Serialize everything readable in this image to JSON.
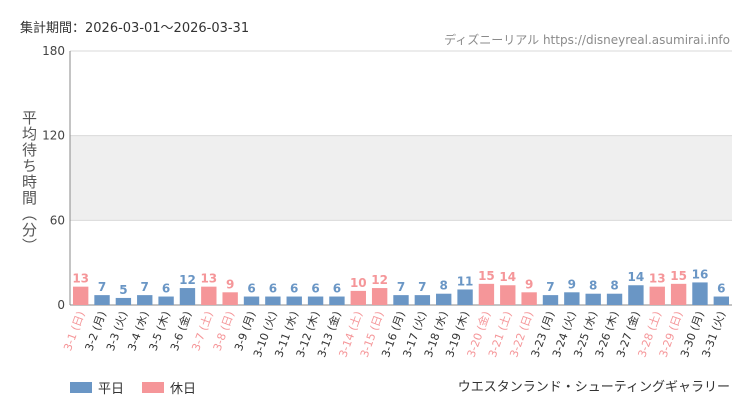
{
  "header": {
    "period": "集計期間：2026-03-01～2026-03-31",
    "source": "ディズニーリアル https://disneyreal.asumirai.info"
  },
  "footer": {
    "attraction": "ウエスタンランド・シューティングギャラリー"
  },
  "colors": {
    "weekday": "#6a96c5",
    "holiday": "#f59699",
    "band": "#efefef",
    "grid": "#d9d9d9",
    "axis": "#888888"
  },
  "chart_data": {
    "type": "bar",
    "ylabel": "平均待ち時間（分）",
    "ylim": [
      0,
      180
    ],
    "yticks": [
      "0",
      "60",
      "120",
      "180"
    ],
    "shaded_band": [
      60,
      120
    ],
    "legend_position": "bottom-left",
    "categories": [
      "3-1 (日)",
      "3-2 (月)",
      "3-3 (火)",
      "3-4 (水)",
      "3-5 (木)",
      "3-6 (金)",
      "3-7 (土)",
      "3-8 (日)",
      "3-9 (月)",
      "3-10 (火)",
      "3-11 (水)",
      "3-12 (木)",
      "3-13 (金)",
      "3-14 (土)",
      "3-15 (日)",
      "3-16 (月)",
      "3-17 (火)",
      "3-18 (水)",
      "3-19 (木)",
      "3-20 (金)",
      "3-21 (土)",
      "3-22 (日)",
      "3-23 (月)",
      "3-24 (火)",
      "3-25 (水)",
      "3-26 (木)",
      "3-27 (金)",
      "3-28 (土)",
      "3-29 (日)",
      "3-30 (月)",
      "3-31 (火)"
    ],
    "values": [
      13,
      7,
      5,
      7,
      6,
      12,
      13,
      9,
      6,
      6,
      6,
      6,
      6,
      10,
      12,
      7,
      7,
      8,
      11,
      15,
      14,
      9,
      7,
      9,
      8,
      8,
      14,
      13,
      15,
      16,
      6
    ],
    "day_type": [
      "休日",
      "平日",
      "平日",
      "平日",
      "平日",
      "平日",
      "休日",
      "休日",
      "平日",
      "平日",
      "平日",
      "平日",
      "平日",
      "休日",
      "休日",
      "平日",
      "平日",
      "平日",
      "平日",
      "休日",
      "休日",
      "休日",
      "平日",
      "平日",
      "平日",
      "平日",
      "平日",
      "休日",
      "休日",
      "平日",
      "平日"
    ],
    "legend": [
      "平日",
      "休日"
    ]
  }
}
